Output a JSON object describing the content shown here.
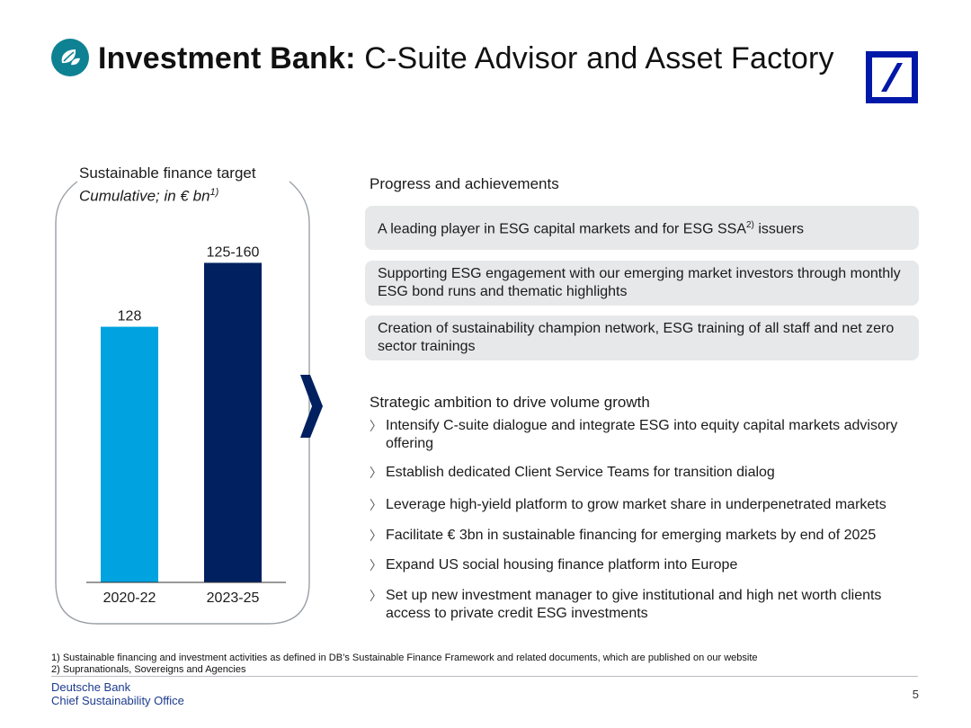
{
  "header": {
    "title_bold": "Investment Bank:",
    "title_rest": " C-Suite Advisor and Asset Factory",
    "badge_icon": "leaf-icon",
    "logo_icon": "deutsche-bank-logo",
    "badge_color": "#0e8293",
    "logo_color": "#0018a8"
  },
  "chart_panel": {
    "title": "Sustainable finance target",
    "subtitle": "Cumulative; in € bn",
    "subtitle_sup": "1)"
  },
  "chart_data": {
    "type": "bar",
    "categories": [
      "2020-22",
      "2023-25"
    ],
    "values": [
      128,
      160
    ],
    "range": [
      null,
      [
        125,
        160
      ]
    ],
    "data_labels": [
      "128",
      "125-160"
    ],
    "colors": [
      "#00a3e0",
      "#002060"
    ],
    "ylim": [
      0,
      180
    ],
    "grid": false
  },
  "arrow": {
    "icon": "chevron-right-icon",
    "color": "#002060"
  },
  "progress": {
    "heading": "Progress and achievements",
    "items": [
      {
        "text_before": "A leading player in ESG capital markets and for ESG SSA",
        "sup": "2)",
        "text_after": " issuers"
      },
      {
        "text_before": "Supporting ESG engagement with our emerging market investors through monthly ESG bond runs and thematic highlights",
        "sup": "",
        "text_after": ""
      },
      {
        "text_before": "Creation of sustainability champion network, ESG training of all staff and net zero sector trainings",
        "sup": "",
        "text_after": ""
      }
    ]
  },
  "ambition": {
    "heading": "Strategic ambition to drive volume growth",
    "bullet": "〉",
    "items": [
      "Intensify C-suite dialogue and integrate ESG into equity capital markets advisory offering",
      "Establish dedicated Client Service Teams for transition dialog",
      "Leverage high-yield platform to grow market share in underpenetrated markets",
      "Facilitate € 3bn in sustainable financing for emerging markets by end of 2025",
      "Expand US social housing finance platform into Europe",
      "Set up new investment manager to give institutional and high net worth clients access to private credit ESG investments"
    ]
  },
  "footer": {
    "footnotes": [
      "1) Sustainable financing and investment activities as defined in DB’s Sustainable Finance Framework and related documents, which are published on our website",
      "2) Supranationals, Sovereigns and Agencies"
    ],
    "brand_line1": "Deutsche Bank",
    "brand_line2": "Chief Sustainability Office",
    "page_number": "5"
  }
}
